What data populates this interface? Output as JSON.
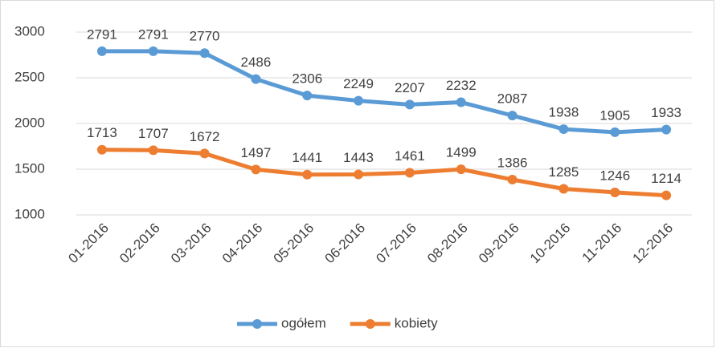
{
  "chart_data": {
    "type": "line",
    "categories": [
      "01-2016",
      "02-2016",
      "03-2016",
      "04-2016",
      "05-2016",
      "06-2016",
      "07-2016",
      "08-2016",
      "09-2016",
      "10-2016",
      "11-2016",
      "12-2016"
    ],
    "series": [
      {
        "name": "ogółem",
        "color": "#5b9bd5",
        "values": [
          2791,
          2791,
          2770,
          2486,
          2306,
          2249,
          2207,
          2232,
          2087,
          1938,
          1905,
          1933
        ]
      },
      {
        "name": "kobiety",
        "color": "#ed7d31",
        "values": [
          1713,
          1707,
          1672,
          1497,
          1441,
          1443,
          1461,
          1499,
          1386,
          1285,
          1246,
          1214
        ]
      }
    ],
    "ylim": [
      1000,
      3000
    ],
    "yticks": [
      1000,
      1500,
      2000,
      2500,
      3000
    ],
    "grid": true,
    "legend": "bottom"
  }
}
